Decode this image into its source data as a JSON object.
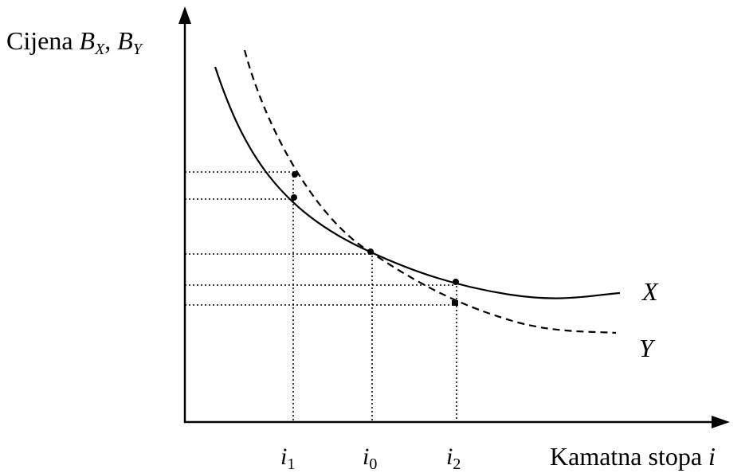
{
  "y_axis": {
    "title_prefix": "Cijena ",
    "b1": "B",
    "b1_sub": "X",
    "sep": ", ",
    "b2": "B",
    "b2_sub": "Y"
  },
  "x_axis": {
    "title_prefix": "Kamatna stopa ",
    "title_var": "i"
  },
  "ticks": [
    {
      "var": "i",
      "sub": "1"
    },
    {
      "var": "i",
      "sub": "0"
    },
    {
      "var": "i",
      "sub": "2"
    }
  ],
  "curves": [
    {
      "name": "X",
      "style": "solid"
    },
    {
      "name": "Y",
      "style": "dashed"
    }
  ]
}
